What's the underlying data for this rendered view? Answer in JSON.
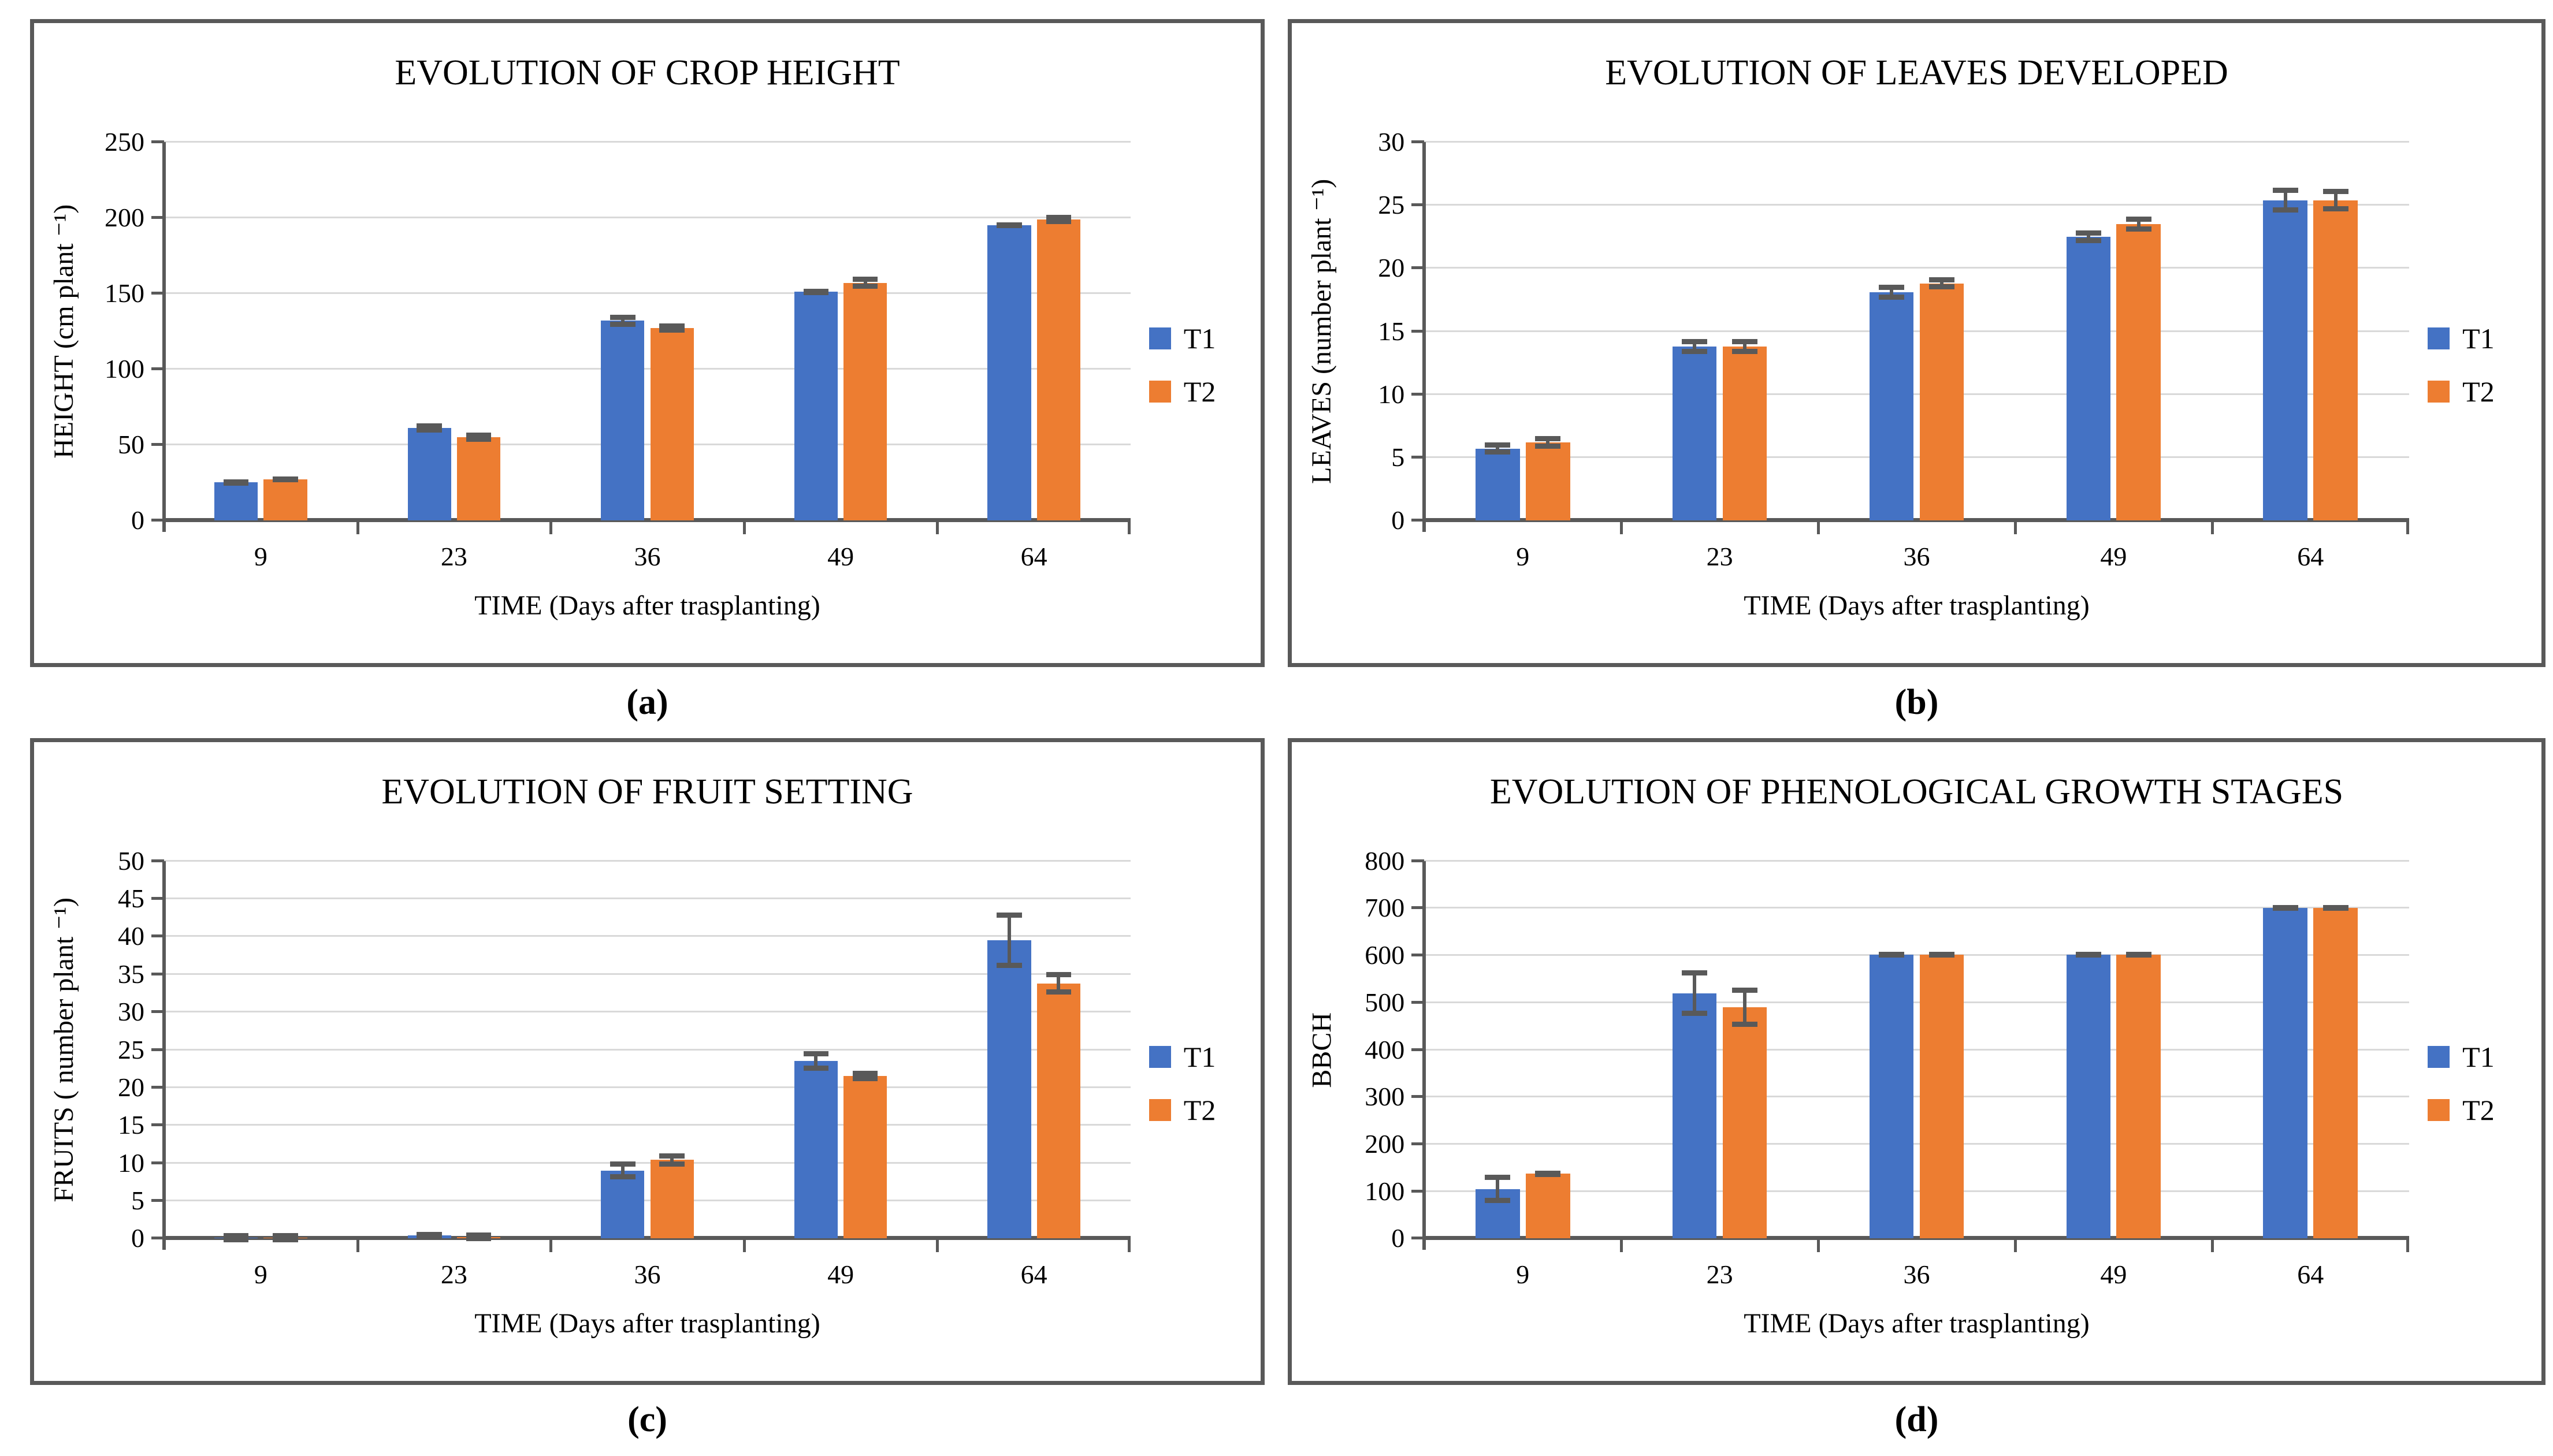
{
  "figure": {
    "captions": [
      "(a)",
      "(b)",
      "(c)",
      "(d)"
    ],
    "colors": {
      "t1": "#4472C4",
      "t2": "#ED7D31",
      "error_bar": "#595959",
      "axis": "#595959",
      "gridline": "#D9D9D9",
      "panel_border": "#595959",
      "background": "#FFFFFF",
      "text": "#000000"
    }
  },
  "chart_data": [
    {
      "type": "bar",
      "panel": "a",
      "title": "EVOLUTION OF CROP HEIGHT",
      "ylabel": "HEIGHT (cm plant ⁻¹)",
      "xlabel": "TIME (Days after trasplanting)",
      "categories": [
        "9",
        "23",
        "36",
        "49",
        "64"
      ],
      "ylim": [
        0,
        250
      ],
      "ystep": 50,
      "grid": true,
      "legend_position": "right",
      "series": [
        {
          "name": "T1",
          "color": "#4472C4",
          "values": [
            25,
            61,
            132,
            151,
            195
          ],
          "errors": [
            2,
            3,
            4,
            2,
            2
          ]
        },
        {
          "name": "T2",
          "color": "#ED7D31",
          "values": [
            27,
            55,
            127,
            157,
            199
          ],
          "errors": [
            2,
            3,
            3,
            4,
            3
          ]
        }
      ]
    },
    {
      "type": "bar",
      "panel": "b",
      "title": "EVOLUTION OF LEAVES DEVELOPED",
      "ylabel": "LEAVES (number plant ⁻¹)",
      "xlabel": "TIME (Days after trasplanting)",
      "categories": [
        "9",
        "23",
        "36",
        "49",
        "64"
      ],
      "ylim": [
        0,
        30
      ],
      "ystep": 5,
      "grid": true,
      "legend_position": "right",
      "series": [
        {
          "name": "T1",
          "color": "#4472C4",
          "values": [
            5.7,
            13.8,
            18.1,
            22.5,
            25.4
          ],
          "errors": [
            0.5,
            0.6,
            0.6,
            0.5,
            1.0
          ]
        },
        {
          "name": "T2",
          "color": "#ED7D31",
          "values": [
            6.2,
            13.8,
            18.8,
            23.5,
            25.4
          ],
          "errors": [
            0.5,
            0.6,
            0.5,
            0.6,
            0.9
          ]
        }
      ]
    },
    {
      "type": "bar",
      "panel": "c",
      "title": "EVOLUTION OF FRUIT SETTING",
      "ylabel": "FRUITS ( number plant ⁻¹)",
      "xlabel": "TIME (Days after trasplanting)",
      "categories": [
        "9",
        "23",
        "36",
        "49",
        "64"
      ],
      "ylim": [
        0,
        50
      ],
      "ystep": 5,
      "grid": true,
      "legend_position": "right",
      "series": [
        {
          "name": "T1",
          "color": "#4472C4",
          "values": [
            0.1,
            0.4,
            9.0,
            23.5,
            39.5
          ],
          "errors": [
            0.1,
            0.2,
            1.2,
            1.3,
            3.7
          ]
        },
        {
          "name": "T2",
          "color": "#ED7D31",
          "values": [
            0.1,
            0.2,
            10.4,
            21.5,
            33.8
          ],
          "errors": [
            0.1,
            0.1,
            0.9,
            0.7,
            1.5
          ]
        }
      ]
    },
    {
      "type": "bar",
      "panel": "d",
      "title": "EVOLUTION OF PHENOLOGICAL GROWTH STAGES",
      "ylabel": "BBCH",
      "xlabel": "TIME (Days after trasplanting)",
      "categories": [
        "9",
        "23",
        "36",
        "49",
        "64"
      ],
      "ylim": [
        0,
        800
      ],
      "ystep": 100,
      "grid": true,
      "legend_position": "right",
      "series": [
        {
          "name": "T1",
          "color": "#4472C4",
          "values": [
            105,
            520,
            601,
            601,
            701
          ],
          "errors": [
            30,
            48,
            6,
            6,
            6
          ]
        },
        {
          "name": "T2",
          "color": "#ED7D31",
          "values": [
            137,
            490,
            601,
            601,
            701
          ],
          "errors": [
            7,
            42,
            6,
            6,
            6
          ]
        }
      ]
    }
  ]
}
